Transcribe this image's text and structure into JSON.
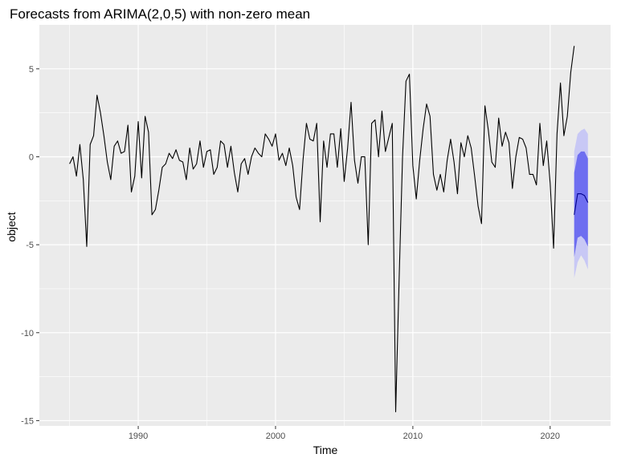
{
  "chart_data": {
    "type": "line",
    "title": "Forecasts from ARIMA(2,0,5) with non-zero mean",
    "xlabel": "Time",
    "ylabel": "object",
    "xlim": [
      1982.8,
      2024.4
    ],
    "ylim": [
      -15.3,
      7.5
    ],
    "x_ticks": [
      1990,
      2000,
      2010,
      2020
    ],
    "x_tick_labels": [
      "1990",
      "2000",
      "2010",
      "2020"
    ],
    "y_ticks": [
      -15,
      -10,
      -5,
      0,
      5
    ],
    "y_tick_labels": [
      "-15",
      "-10",
      "-5",
      "0",
      "5"
    ],
    "grid": true,
    "legend": "none",
    "colors": {
      "panel": "#ebebeb",
      "grid_major": "#ffffff",
      "series": "#000000",
      "pi80": "#6e6ef0",
      "pi95": "#c8c8f5",
      "forecast": "#00008b"
    },
    "series": [
      {
        "start": 1985.0,
        "step": 0.25,
        "values": [
          -0.4,
          0.0,
          -1.1,
          0.7,
          -1.3,
          -5.1,
          0.7,
          1.2,
          3.5,
          2.5,
          1.2,
          -0.3,
          -1.3,
          0.6,
          0.9,
          0.2,
          0.3,
          1.8,
          -2.0,
          -1.1,
          2.0,
          -1.2,
          2.3,
          1.4,
          -3.3,
          -3.0,
          -1.9,
          -0.6,
          -0.4,
          0.2,
          -0.1,
          0.4,
          -0.2,
          -0.3,
          -1.3,
          0.5,
          -0.7,
          -0.4,
          0.9,
          -0.6,
          0.3,
          0.4,
          -1.0,
          -0.6,
          0.9,
          0.7,
          -0.6,
          0.6,
          -0.9,
          -2.0,
          -0.4,
          -0.1,
          -1.0,
          0.0,
          0.5,
          0.2,
          0.0,
          1.3,
          1.0,
          0.6,
          1.3,
          -0.2,
          0.2,
          -0.5,
          0.5,
          -0.5,
          -2.3,
          -3.0,
          -0.2,
          1.9,
          1.0,
          0.9,
          1.9,
          -3.7,
          0.9,
          -0.6,
          1.3,
          1.3,
          -0.6,
          1.6,
          -1.4,
          0.5,
          3.1,
          -0.2,
          -1.5,
          0.0,
          0.0,
          -5.0,
          1.9,
          2.1,
          0.0,
          2.6,
          0.3,
          1.1,
          1.9,
          -14.5,
          -7.0,
          0.0,
          4.3,
          4.7,
          -0.5,
          -2.4,
          -0.2,
          1.6,
          3.0,
          2.3,
          -1.0,
          -1.9,
          -1.0,
          -2.0,
          -0.2,
          1.0,
          -0.3,
          -2.1,
          0.8,
          0.0,
          1.2,
          0.5,
          -1.1,
          -2.8,
          -3.8,
          2.9,
          1.5,
          -0.3,
          -0.6,
          2.2,
          0.6,
          1.4,
          0.8,
          -1.8,
          0.0,
          1.1,
          1.0,
          0.5,
          -1.0,
          -1.0,
          -1.6,
          1.9,
          -0.5,
          0.9,
          -1.5,
          -5.2,
          1.3,
          4.2,
          1.2,
          2.3,
          4.8,
          6.3
        ]
      }
    ],
    "forecast": {
      "start": 2021.75,
      "step": 0.25,
      "mean": [
        -3.3,
        -2.1,
        -2.1,
        -2.2,
        -2.6
      ],
      "lo80": [
        -5.7,
        -4.6,
        -4.5,
        -4.7,
        -5.1
      ],
      "hi80": [
        -0.9,
        0.1,
        0.3,
        0.3,
        -0.1
      ],
      "lo95": [
        -6.9,
        -6.0,
        -5.6,
        -5.9,
        -6.4
      ],
      "hi95": [
        0.3,
        1.3,
        1.5,
        1.6,
        1.3
      ]
    }
  }
}
